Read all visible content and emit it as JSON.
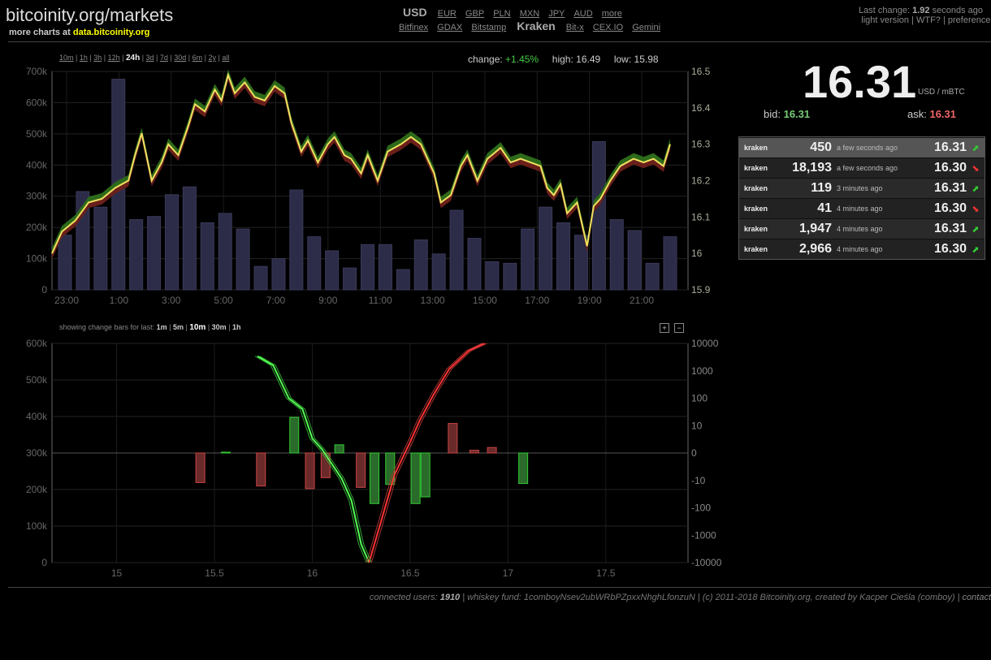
{
  "header": {
    "logo": "bitcoinity.org/markets",
    "more_charts_text": "more charts at",
    "more_charts_link": "data.bitcoinity.org",
    "currency_current": "USD",
    "currencies": [
      "EUR",
      "GBP",
      "PLN",
      "MXN",
      "JPY",
      "AUD",
      "more"
    ],
    "exchanges_left": [
      "Bitfinex",
      "GDAX",
      "Bitstamp"
    ],
    "exchange_current": "Kraken",
    "exchanges_right": [
      "Bit-x",
      "CEX.IO",
      "Gemini"
    ],
    "last_change_label": "Last change:",
    "last_change_value": "1.92",
    "last_change_suffix": "seconds ago",
    "links": [
      "light version",
      "WTF?",
      "preferences"
    ]
  },
  "controls": {
    "ranges": [
      "10m",
      "1h",
      "3h",
      "12h",
      "24h",
      "3d",
      "7d",
      "30d",
      "6m",
      "2y",
      "all"
    ],
    "active_range": "24h",
    "change_label": "change:",
    "change_value": "+1.45%",
    "high_label": "high:",
    "high_value": "16.49",
    "low_label": "low:",
    "low_value": "15.98",
    "change_bars_label": "showing change bars for last:",
    "change_bar_options": [
      "1m",
      "5m",
      "10m",
      "30m",
      "1h"
    ],
    "change_bar_active": "10m",
    "zoom_in": "+",
    "zoom_out": "−"
  },
  "ticker": {
    "price": "16.31",
    "unit": "USD / mBTC",
    "bid_label": "bid:",
    "bid_value": "16.31",
    "ask_label": "ask:",
    "ask_value": "16.31"
  },
  "trades": [
    {
      "exchange": "kraken",
      "amount": "450",
      "time": "a few seconds ago",
      "price": "16.31",
      "dir": "up"
    },
    {
      "exchange": "kraken",
      "amount": "18,193",
      "time": "a few seconds ago",
      "price": "16.30",
      "dir": "down"
    },
    {
      "exchange": "kraken",
      "amount": "119",
      "time": "3 minutes ago",
      "price": "16.31",
      "dir": "up"
    },
    {
      "exchange": "kraken",
      "amount": "41",
      "time": "4 minutes ago",
      "price": "16.30",
      "dir": "down"
    },
    {
      "exchange": "kraken",
      "amount": "1,947",
      "time": "4 minutes ago",
      "price": "16.31",
      "dir": "up"
    },
    {
      "exchange": "kraken",
      "amount": "2,966",
      "time": "4 minutes ago",
      "price": "16.30",
      "dir": "up"
    }
  ],
  "footer": {
    "users_label": "connected users:",
    "users_value": "1910",
    "rest": " | whiskey fund: 1comboyNsev2ubWRbPZpxxNhghLfonzuN | (c) 2011-2018 Bitcoinity.org, created by Kacper Cieśla (comboy) | ",
    "contact": "contact"
  },
  "colors": {
    "up": "#33cc33",
    "down": "#ee3333",
    "price_line": "#f0e060",
    "volume_bar": "#2c2c48"
  },
  "chart_data": [
    {
      "type": "line",
      "x_ticks": [
        "23:00",
        "1:00",
        "3:00",
        "5:00",
        "7:00",
        "9:00",
        "11:00",
        "13:00",
        "15:00",
        "17:00",
        "19:00",
        "21:00"
      ],
      "y_left_ticks": [
        "0",
        "100k",
        "200k",
        "300k",
        "400k",
        "500k",
        "600k",
        "700k"
      ],
      "y_right_ticks": [
        "15.9",
        "16",
        "16.1",
        "16.2",
        "16.3",
        "16.4",
        "16.5"
      ],
      "ylim_left": [
        0,
        700000
      ],
      "ylim_right": [
        15.9,
        16.5
      ],
      "xlim": [
        22.5,
        24.2
      ],
      "grid": true,
      "series": [
        {
          "values": [
            [
              22.5,
              16.0
            ],
            [
              22.8,
              16.06
            ],
            [
              23.2,
              16.09
            ],
            [
              23.6,
              16.14
            ],
            [
              24.0,
              16.15
            ],
            [
              24.4,
              16.18
            ],
            [
              24.8,
              16.2
            ],
            [
              25.0,
              16.27
            ],
            [
              25.2,
              16.33
            ],
            [
              25.5,
              16.2
            ],
            [
              25.8,
              16.25
            ],
            [
              26.0,
              16.3
            ],
            [
              26.3,
              16.27
            ],
            [
              26.6,
              16.35
            ],
            [
              26.8,
              16.41
            ],
            [
              27.1,
              16.39
            ],
            [
              27.4,
              16.45
            ],
            [
              27.6,
              16.42
            ],
            [
              27.8,
              16.49
            ],
            [
              28.0,
              16.44
            ],
            [
              28.3,
              16.47
            ],
            [
              28.6,
              16.43
            ],
            [
              28.9,
              16.42
            ],
            [
              29.2,
              16.46
            ],
            [
              29.5,
              16.44
            ],
            [
              29.7,
              16.36
            ],
            [
              30.0,
              16.28
            ],
            [
              30.2,
              16.31
            ],
            [
              30.5,
              16.25
            ],
            [
              30.8,
              16.3
            ],
            [
              31.0,
              16.32
            ],
            [
              31.3,
              16.27
            ],
            [
              31.5,
              16.26
            ],
            [
              31.8,
              16.22
            ],
            [
              32.0,
              16.27
            ],
            [
              32.3,
              16.2
            ],
            [
              32.6,
              16.28
            ],
            [
              33.0,
              16.3
            ],
            [
              33.3,
              16.32
            ],
            [
              33.6,
              16.3
            ],
            [
              34.0,
              16.22
            ],
            [
              34.2,
              16.14
            ],
            [
              34.5,
              16.16
            ],
            [
              34.8,
              16.24
            ],
            [
              35.0,
              16.27
            ],
            [
              35.3,
              16.2
            ],
            [
              35.6,
              16.26
            ],
            [
              36.0,
              16.29
            ],
            [
              36.3,
              16.25
            ],
            [
              36.6,
              16.26
            ],
            [
              36.9,
              16.25
            ],
            [
              37.2,
              16.24
            ],
            [
              37.4,
              16.18
            ],
            [
              37.6,
              16.16
            ],
            [
              37.8,
              16.19
            ],
            [
              38.0,
              16.11
            ],
            [
              38.3,
              16.14
            ],
            [
              38.6,
              16.02
            ],
            [
              38.8,
              16.13
            ],
            [
              39.0,
              16.15
            ],
            [
              39.3,
              16.2
            ],
            [
              39.6,
              16.24
            ],
            [
              40.0,
              16.26
            ],
            [
              40.3,
              16.25
            ],
            [
              40.6,
              16.26
            ],
            [
              40.9,
              16.24
            ],
            [
              41.1,
              16.3
            ]
          ]
        }
      ],
      "volume_bars": [
        {
          "x": 23.0,
          "v": 175000
        },
        {
          "x": 23.6,
          "v": 315000
        },
        {
          "x": 24.2,
          "v": 265000
        },
        {
          "x": 24.8,
          "v": 675000
        },
        {
          "x": 25.4,
          "v": 225000
        },
        {
          "x": 26.0,
          "v": 235000
        },
        {
          "x": 26.6,
          "v": 305000
        },
        {
          "x": 27.2,
          "v": 330000
        },
        {
          "x": 27.8,
          "v": 215000
        },
        {
          "x": 28.4,
          "v": 245000
        },
        {
          "x": 29.0,
          "v": 195000
        },
        {
          "x": 29.6,
          "v": 75000
        },
        {
          "x": 30.2,
          "v": 100000
        },
        {
          "x": 30.8,
          "v": 320000
        },
        {
          "x": 31.4,
          "v": 170000
        },
        {
          "x": 32.0,
          "v": 125000
        },
        {
          "x": 32.6,
          "v": 70000
        },
        {
          "x": 33.2,
          "v": 145000
        },
        {
          "x": 33.8,
          "v": 145000
        },
        {
          "x": 34.4,
          "v": 65000
        },
        {
          "x": 35.0,
          "v": 160000
        },
        {
          "x": 35.6,
          "v": 115000
        },
        {
          "x": 36.2,
          "v": 255000
        },
        {
          "x": 36.8,
          "v": 165000
        },
        {
          "x": 37.4,
          "v": 90000
        },
        {
          "x": 38.0,
          "v": 85000
        },
        {
          "x": 38.6,
          "v": 195000
        },
        {
          "x": 39.2,
          "v": 265000
        },
        {
          "x": 39.8,
          "v": 215000
        },
        {
          "x": 40.4,
          "v": 175000
        },
        {
          "x": 41.0,
          "v": 475000
        },
        {
          "x": 41.6,
          "v": 225000
        },
        {
          "x": 42.2,
          "v": 190000
        },
        {
          "x": 42.8,
          "v": 85000
        },
        {
          "x": 43.4,
          "v": 170000
        }
      ]
    },
    {
      "type": "line",
      "x_ticks": [
        "15",
        "15.5",
        "16",
        "16.5",
        "17",
        "17.5"
      ],
      "y_left_ticks": [
        "0",
        "100k",
        "200k",
        "300k",
        "400k",
        "500k",
        "600k"
      ],
      "y_right_ticks": [
        "10000",
        "1000",
        "100",
        "10",
        "0",
        "-10",
        "-100",
        "-1000",
        "-10000"
      ],
      "grid": true,
      "xlim": [
        14.67,
        17.92
      ],
      "ylim_left": [
        0,
        600000
      ],
      "series": [
        {
          "values": [
            [
              15.72,
              565000
            ],
            [
              15.8,
              540000
            ],
            [
              15.88,
              450000
            ],
            [
              15.95,
              420000
            ],
            [
              16.0,
              340000
            ],
            [
              16.05,
              310000
            ],
            [
              16.1,
              270000
            ],
            [
              16.15,
              230000
            ],
            [
              16.2,
              170000
            ],
            [
              16.25,
              50000
            ],
            [
              16.29,
              0
            ]
          ]
        },
        {
          "values": [
            [
              16.29,
              0
            ],
            [
              16.35,
              110000
            ],
            [
              16.42,
              240000
            ],
            [
              16.5,
              330000
            ],
            [
              16.55,
              390000
            ],
            [
              16.62,
              460000
            ],
            [
              16.7,
              530000
            ],
            [
              16.8,
              580000
            ],
            [
              16.88,
              600000
            ]
          ]
        }
      ],
      "change_bars": [
        {
          "x": 15.43,
          "v": -12
        },
        {
          "x": 15.56,
          "v": 0.3
        },
        {
          "x": 15.74,
          "v": -16
        },
        {
          "x": 15.91,
          "v": 20
        },
        {
          "x": 15.99,
          "v": -20
        },
        {
          "x": 16.07,
          "v": -9
        },
        {
          "x": 16.14,
          "v": 3
        },
        {
          "x": 16.25,
          "v": -18
        },
        {
          "x": 16.32,
          "v": -70
        },
        {
          "x": 16.4,
          "v": -14
        },
        {
          "x": 16.53,
          "v": -70
        },
        {
          "x": 16.58,
          "v": -40
        },
        {
          "x": 16.72,
          "v": 12
        },
        {
          "x": 16.83,
          "v": 1
        },
        {
          "x": 16.92,
          "v": 2
        },
        {
          "x": 17.08,
          "v": -13
        }
      ]
    }
  ]
}
